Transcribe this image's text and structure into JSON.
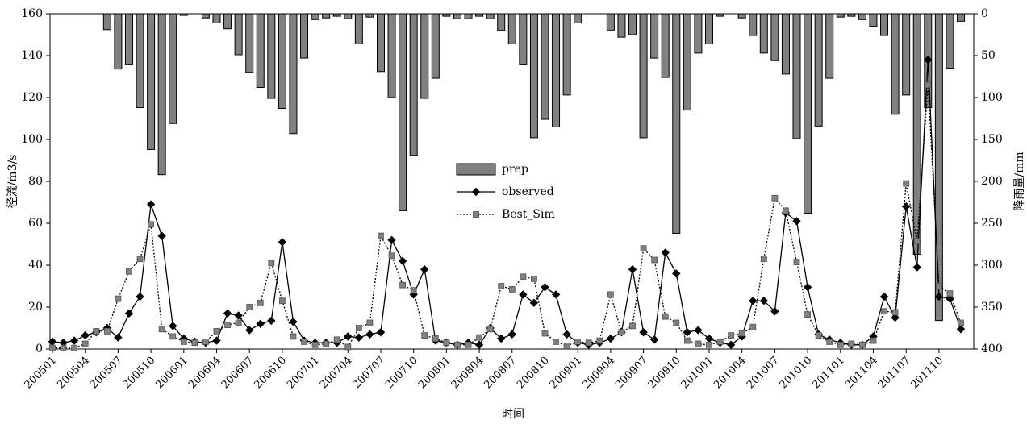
{
  "chart_data": {
    "type": "combo",
    "xlabel": "时间",
    "ylabel": "径流/m3/s",
    "y2label": "降雨量/mm",
    "categories": [
      "200501",
      null,
      null,
      "200504",
      null,
      null,
      "200507",
      null,
      null,
      "200510",
      null,
      null,
      "200601",
      null,
      null,
      "200604",
      null,
      null,
      "200607",
      null,
      null,
      "200610",
      null,
      null,
      "200701",
      null,
      null,
      "200704",
      null,
      null,
      "200707",
      null,
      null,
      "200710",
      null,
      null,
      "200801",
      null,
      null,
      "200804",
      null,
      null,
      "200807",
      null,
      null,
      "200810",
      null,
      null,
      "200901",
      null,
      null,
      "200904",
      null,
      null,
      "200907",
      null,
      null,
      "200910",
      null,
      null,
      "201001",
      null,
      null,
      "201004",
      null,
      null,
      "201007",
      null,
      null,
      "201010",
      null,
      null,
      "201101",
      null,
      null,
      "201104",
      null,
      null,
      "201107",
      null,
      null,
      "201110",
      null,
      null
    ],
    "ylim": [
      0,
      160
    ],
    "yticks": [
      0,
      20,
      40,
      60,
      80,
      100,
      120,
      140,
      160
    ],
    "y2lim": [
      0,
      400
    ],
    "y2ticks": [
      0,
      50,
      100,
      150,
      200,
      250,
      300,
      350,
      400
    ],
    "y2_inverted": true,
    "legend": "center",
    "series": [
      {
        "name": "prep",
        "type": "bar",
        "axis": "y2",
        "color": "#808080",
        "values": [
          0,
          0,
          0,
          0,
          0,
          19,
          66,
          61,
          112,
          162,
          192,
          131,
          2,
          0,
          5,
          11,
          18,
          49,
          70,
          88,
          101,
          113,
          143,
          53,
          7,
          5,
          3,
          6,
          36,
          4,
          69,
          100,
          235,
          169,
          101,
          77,
          3,
          6,
          6,
          3,
          6,
          20,
          36,
          61,
          148,
          126,
          135,
          97,
          11,
          0,
          0,
          20,
          28,
          25,
          148,
          53,
          76,
          262,
          115,
          47,
          36,
          3,
          0,
          5,
          26,
          47,
          56,
          72,
          149,
          238,
          134,
          77,
          4,
          3,
          7,
          15,
          26,
          120,
          97,
          287,
          112,
          366,
          65,
          9
        ]
      },
      {
        "name": "observed",
        "type": "line",
        "color": "#000000",
        "marker": "diamond",
        "values": [
          3.5,
          3,
          4,
          6.5,
          8,
          10,
          5.5,
          17,
          25,
          69,
          54,
          11,
          5,
          3.5,
          3,
          4,
          17,
          16,
          9,
          12,
          13.5,
          51,
          13,
          4,
          3,
          3,
          3,
          6,
          5.5,
          7,
          8,
          52,
          42,
          26,
          38,
          4,
          3,
          2,
          3,
          2,
          10,
          5,
          7,
          26,
          22,
          29.5,
          26,
          7,
          3,
          2,
          3,
          5,
          8,
          38,
          8,
          4.5,
          46,
          36,
          8,
          9,
          5,
          3,
          2,
          6,
          23,
          23,
          18,
          65,
          61,
          29.5,
          7,
          4.5,
          3,
          2,
          2,
          6,
          25,
          15,
          68,
          39,
          138,
          25,
          24,
          9.5
        ]
      },
      {
        "name": "Best_Sim",
        "type": "line",
        "color": "#808080",
        "marker": "square",
        "dash": "dotted",
        "values": [
          0.5,
          0.5,
          0.5,
          2.5,
          8.5,
          8.5,
          24,
          37,
          43,
          59.5,
          9.5,
          6,
          3.5,
          3,
          3.5,
          8.5,
          11.5,
          12.5,
          20,
          22,
          41,
          23,
          6,
          3.5,
          2,
          2.5,
          4.5,
          1,
          10,
          12.5,
          54,
          44.5,
          30.5,
          28,
          6.5,
          5,
          3,
          2,
          2,
          5.5,
          9.5,
          30,
          28.5,
          34.5,
          33.5,
          7.5,
          3.5,
          1.5,
          3.5,
          3,
          4,
          26,
          8,
          11,
          48,
          42.5,
          15.5,
          12.5,
          4,
          2.5,
          2,
          3.5,
          6.5,
          7.5,
          10.5,
          43,
          72,
          66,
          41.5,
          16.5,
          6.5,
          3.5,
          2,
          2.5,
          2,
          4,
          18,
          17.5,
          79,
          51.5,
          126,
          30,
          26.5,
          12.5
        ]
      }
    ]
  }
}
